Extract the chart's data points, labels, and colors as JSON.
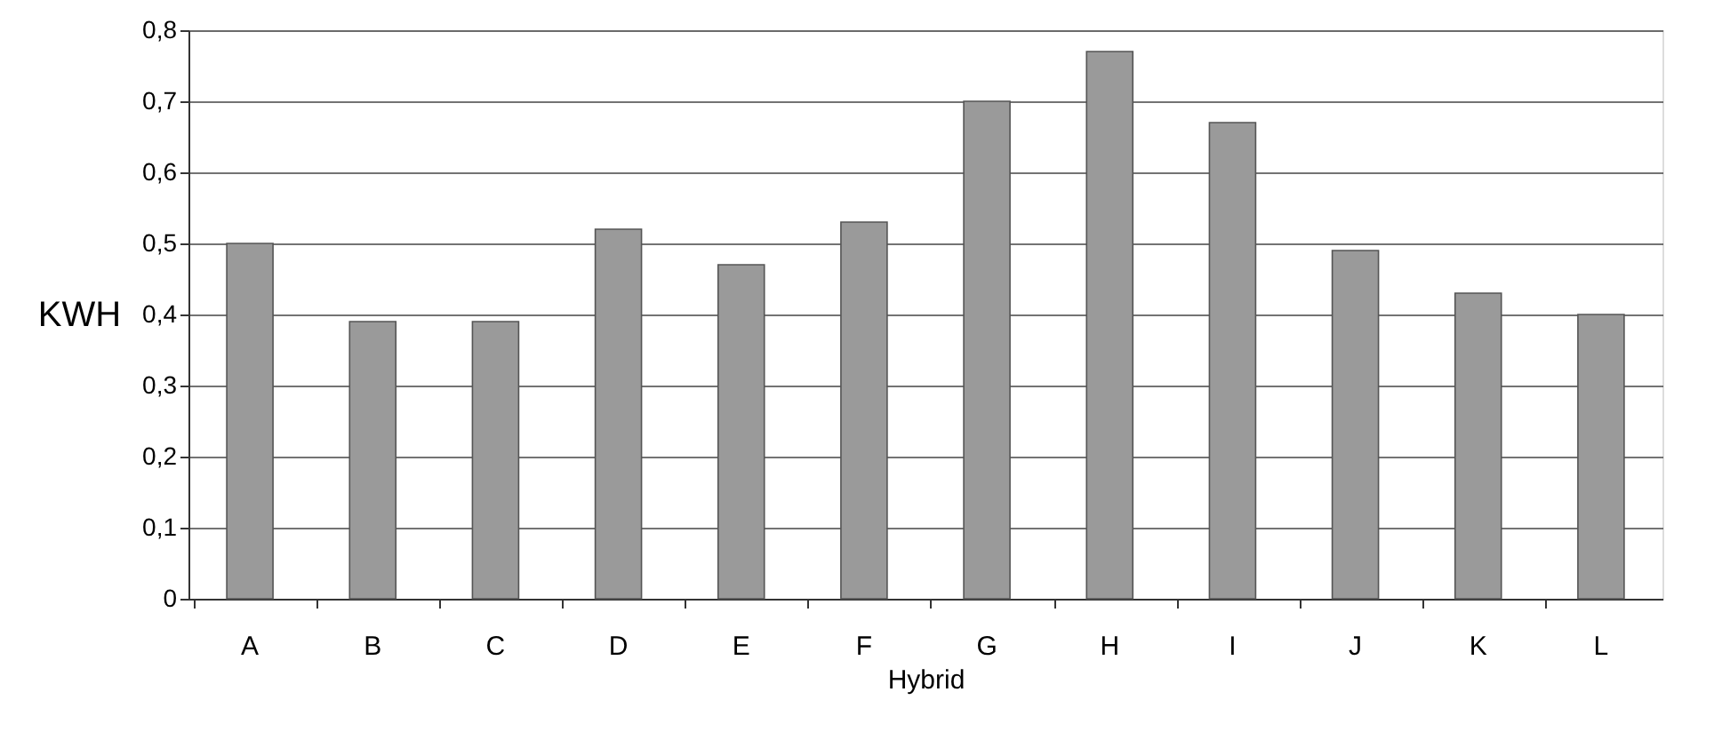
{
  "chart_data": {
    "type": "bar",
    "xlabel": "Hybrid",
    "ylabel": "KWH",
    "categories": [
      "A",
      "B",
      "C",
      "D",
      "E",
      "F",
      "G",
      "H",
      "I",
      "J",
      "K",
      "L"
    ],
    "values": [
      0.5,
      0.39,
      0.39,
      0.52,
      0.47,
      0.53,
      0.7,
      0.77,
      0.67,
      0.49,
      0.43,
      0.4
    ],
    "color": "#9a9a9a",
    "ylim": [
      0,
      0.8
    ],
    "yticks": [
      {
        "value": 0,
        "label": "0"
      },
      {
        "value": 0.1,
        "label": "0,1"
      },
      {
        "value": 0.2,
        "label": "0,2"
      },
      {
        "value": 0.3,
        "label": "0,3"
      },
      {
        "value": 0.4,
        "label": "0,4"
      },
      {
        "value": 0.5,
        "label": "0,5"
      },
      {
        "value": 0.6,
        "label": "0,6"
      },
      {
        "value": 0.7,
        "label": "0,7"
      },
      {
        "value": 0.8,
        "label": "0,8"
      }
    ],
    "grid": "y"
  }
}
